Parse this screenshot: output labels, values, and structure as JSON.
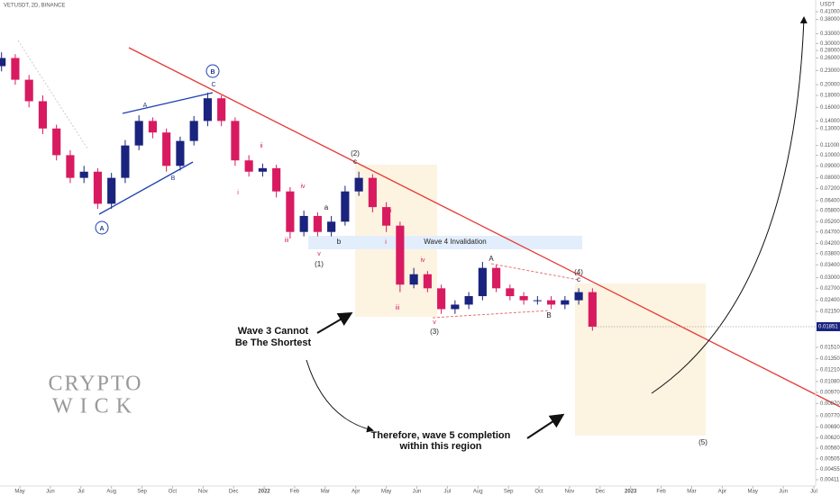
{
  "chart_data": {
    "type": "candlestick",
    "title": "VETUSDT, 2D, BINANCE",
    "y_axis_label": "USDT",
    "log_scale": true,
    "grid": false,
    "up_color": "#1a237e",
    "down_color": "#d81b60",
    "x": [
      -0.6,
      -0.15,
      0.3,
      0.75,
      1.2,
      1.65,
      2.1,
      2.55,
      3,
      3.45,
      3.9,
      4.35,
      4.8,
      5.25,
      5.7,
      6.15,
      6.6,
      7.05,
      7.5,
      7.95,
      8.4,
      8.85,
      9.3,
      9.75,
      10.2,
      10.65,
      11.1,
      11.55,
      12,
      12.45,
      12.9,
      13.35,
      13.8,
      14.25,
      14.7,
      15.15,
      15.6,
      16.05,
      16.5,
      16.95,
      17.4,
      17.85,
      18.3,
      18.75
    ],
    "open": [
      0.24,
      0.26,
      0.21,
      0.17,
      0.13,
      0.1,
      0.08,
      0.085,
      0.062,
      0.08,
      0.11,
      0.14,
      0.125,
      0.09,
      0.115,
      0.14,
      0.175,
      0.14,
      0.095,
      0.085,
      0.088,
      0.07,
      0.047,
      0.055,
      0.047,
      0.052,
      0.07,
      0.08,
      0.06,
      0.05,
      0.028,
      0.031,
      0.027,
      0.022,
      0.023,
      0.025,
      0.033,
      0.027,
      0.025,
      0.024,
      0.024,
      0.023,
      0.024,
      0.026
    ],
    "high": [
      0.275,
      0.27,
      0.22,
      0.18,
      0.135,
      0.105,
      0.09,
      0.088,
      0.084,
      0.116,
      0.148,
      0.145,
      0.13,
      0.12,
      0.147,
      0.185,
      0.18,
      0.145,
      0.1,
      0.092,
      0.091,
      0.073,
      0.058,
      0.057,
      0.055,
      0.074,
      0.085,
      0.083,
      0.063,
      0.052,
      0.033,
      0.032,
      0.028,
      0.024,
      0.026,
      0.035,
      0.034,
      0.028,
      0.026,
      0.025,
      0.025,
      0.025,
      0.027,
      0.027
    ],
    "low": [
      0.228,
      0.2,
      0.16,
      0.123,
      0.095,
      0.076,
      0.076,
      0.059,
      0.059,
      0.076,
      0.105,
      0.118,
      0.085,
      0.086,
      0.11,
      0.133,
      0.133,
      0.09,
      0.081,
      0.081,
      0.066,
      0.044,
      0.045,
      0.045,
      0.045,
      0.05,
      0.067,
      0.057,
      0.047,
      0.026,
      0.027,
      0.026,
      0.021,
      0.021,
      0.022,
      0.024,
      0.026,
      0.024,
      0.023,
      0.023,
      0.022,
      0.022,
      0.023,
      0.0178
    ],
    "close": [
      0.26,
      0.21,
      0.17,
      0.13,
      0.1,
      0.08,
      0.085,
      0.062,
      0.08,
      0.11,
      0.14,
      0.125,
      0.09,
      0.115,
      0.14,
      0.175,
      0.14,
      0.095,
      0.085,
      0.088,
      0.07,
      0.047,
      0.055,
      0.047,
      0.052,
      0.07,
      0.08,
      0.06,
      0.05,
      0.028,
      0.031,
      0.027,
      0.022,
      0.023,
      0.025,
      0.033,
      0.027,
      0.025,
      0.024,
      0.024,
      0.023,
      0.024,
      0.026,
      0.0185
    ],
    "last_price": {
      "value": 0.01851,
      "label": "0.01851"
    },
    "xlim": [
      -0.65,
      26
    ],
    "xticks": [
      {
        "value": 0,
        "label": "May"
      },
      {
        "value": 1,
        "label": "Jun"
      },
      {
        "value": 2,
        "label": "Jul"
      },
      {
        "value": 3,
        "label": "Aug"
      },
      {
        "value": 4,
        "label": "Sep"
      },
      {
        "value": 5,
        "label": "Oct"
      },
      {
        "value": 6,
        "label": "Nov"
      },
      {
        "value": 7,
        "label": "Dec"
      },
      {
        "value": 8,
        "label": "2022"
      },
      {
        "value": 9,
        "label": "Feb"
      },
      {
        "value": 10,
        "label": "Mar"
      },
      {
        "value": 11,
        "label": "Apr"
      },
      {
        "value": 12,
        "label": "May"
      },
      {
        "value": 13,
        "label": "Jun"
      },
      {
        "value": 14,
        "label": "Jul"
      },
      {
        "value": 15,
        "label": "Aug"
      },
      {
        "value": 16,
        "label": "Sep"
      },
      {
        "value": 17,
        "label": "Oct"
      },
      {
        "value": 18,
        "label": "Nov"
      },
      {
        "value": 19,
        "label": "Dec"
      },
      {
        "value": 20,
        "label": "2023"
      },
      {
        "value": 21,
        "label": "Feb"
      },
      {
        "value": 22,
        "label": "Mar"
      },
      {
        "value": 23,
        "label": "Apr"
      },
      {
        "value": 24,
        "label": "May"
      },
      {
        "value": 25,
        "label": "Jun"
      },
      {
        "value": 26,
        "label": "Jul"
      }
    ],
    "ylim": [
      0.00411,
      0.41
    ],
    "yticks": [
      {
        "value": 0.41,
        "label": "0.41000"
      },
      {
        "value": 0.38,
        "label": "0.38000"
      },
      {
        "value": 0.33,
        "label": "0.33000"
      },
      {
        "value": 0.3,
        "label": "0.30000"
      },
      {
        "value": 0.28,
        "label": "0.28000"
      },
      {
        "value": 0.26,
        "label": "0.26000"
      },
      {
        "value": 0.23,
        "label": "0.23000"
      },
      {
        "value": 0.2,
        "label": "0.20000"
      },
      {
        "value": 0.18,
        "label": "0.18000"
      },
      {
        "value": 0.16,
        "label": "0.16000"
      },
      {
        "value": 0.14,
        "label": "0.14000"
      },
      {
        "value": 0.13,
        "label": "0.13000"
      },
      {
        "value": 0.11,
        "label": "0.11000"
      },
      {
        "value": 0.1,
        "label": "0.10000"
      },
      {
        "value": 0.09,
        "label": "0.09000"
      },
      {
        "value": 0.08,
        "label": "0.08000"
      },
      {
        "value": 0.072,
        "label": "0.07200"
      },
      {
        "value": 0.064,
        "label": "0.06400"
      },
      {
        "value": 0.058,
        "label": "0.05800"
      },
      {
        "value": 0.052,
        "label": "0.05200"
      },
      {
        "value": 0.047,
        "label": "0.04700"
      },
      {
        "value": 0.042,
        "label": "0.04200"
      },
      {
        "value": 0.038,
        "label": "0.03800"
      },
      {
        "value": 0.034,
        "label": "0.03400"
      },
      {
        "value": 0.03,
        "label": "0.03000"
      },
      {
        "value": 0.027,
        "label": "0.02700"
      },
      {
        "value": 0.024,
        "label": "0.02400"
      },
      {
        "value": 0.0215,
        "label": "0.02150"
      },
      {
        "value": 0.0151,
        "label": "0.01510"
      },
      {
        "value": 0.0135,
        "label": "0.01350"
      },
      {
        "value": 0.0121,
        "label": "0.01210"
      },
      {
        "value": 0.0108,
        "label": "0.01080"
      },
      {
        "value": 0.0097,
        "label": "0.00970"
      },
      {
        "value": 0.0087,
        "label": "0.00870"
      },
      {
        "value": 0.0077,
        "label": "0.00770"
      },
      {
        "value": 0.0069,
        "label": "0.00690"
      },
      {
        "value": 0.0062,
        "label": "0.00620"
      },
      {
        "value": 0.0056,
        "label": "0.00560"
      },
      {
        "value": 0.00505,
        "label": "0.00505"
      },
      {
        "value": 0.00455,
        "label": "0.00455"
      },
      {
        "value": 0.00411,
        "label": "0.00411"
      }
    ],
    "annotations": [
      "A",
      "B",
      "A",
      "B",
      "C",
      "(1)",
      "(2)",
      "(3)",
      "(4)",
      "(5)",
      "c",
      "c",
      "i",
      "ii",
      "iii",
      "iv",
      "v",
      "i",
      "ii",
      "iii",
      "iv",
      "v",
      "a",
      "b",
      "A",
      "B",
      "Wave 4 Invalidation",
      "Wave 3 Cannot",
      "Be The Shortest",
      "Therefore, wave 5 completion",
      "within this region",
      "CRYPTO",
      "WICK"
    ]
  }
}
